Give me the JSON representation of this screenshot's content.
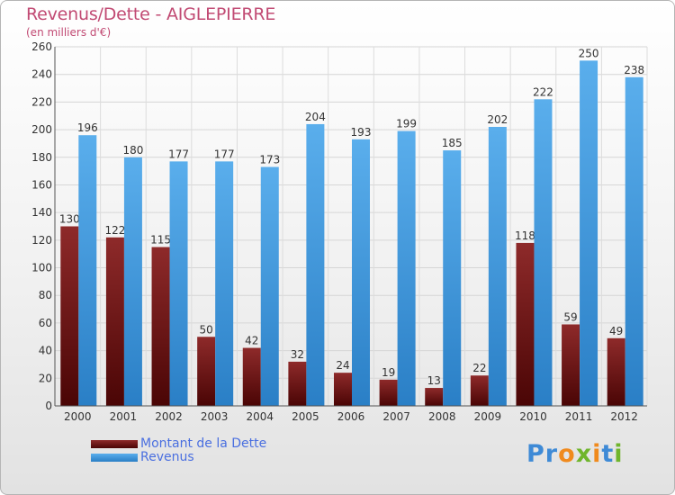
{
  "chart_data": {
    "type": "bar",
    "title": "Revenus/Dette - AIGLEPIERRE",
    "subtitle": "(en milliers d'€)",
    "categories": [
      "2000",
      "2001",
      "2002",
      "2003",
      "2004",
      "2005",
      "2006",
      "2007",
      "2008",
      "2009",
      "2010",
      "2011",
      "2012"
    ],
    "series": [
      {
        "name": "Montant de la Dette",
        "color": "#7a1818",
        "values": [
          130,
          122,
          115,
          50,
          42,
          32,
          24,
          19,
          13,
          22,
          118,
          59,
          49
        ]
      },
      {
        "name": "Revenus",
        "color": "#3f97de",
        "values": [
          196,
          180,
          177,
          177,
          173,
          204,
          193,
          199,
          185,
          202,
          222,
          250,
          238
        ]
      }
    ],
    "ylim": [
      0,
      260
    ],
    "yticks": [
      0,
      20,
      40,
      60,
      80,
      100,
      120,
      140,
      160,
      180,
      200,
      220,
      240,
      260
    ],
    "grid": true,
    "legend_position": "bottom-left"
  },
  "branding": {
    "logo_text": "Proxiti"
  }
}
